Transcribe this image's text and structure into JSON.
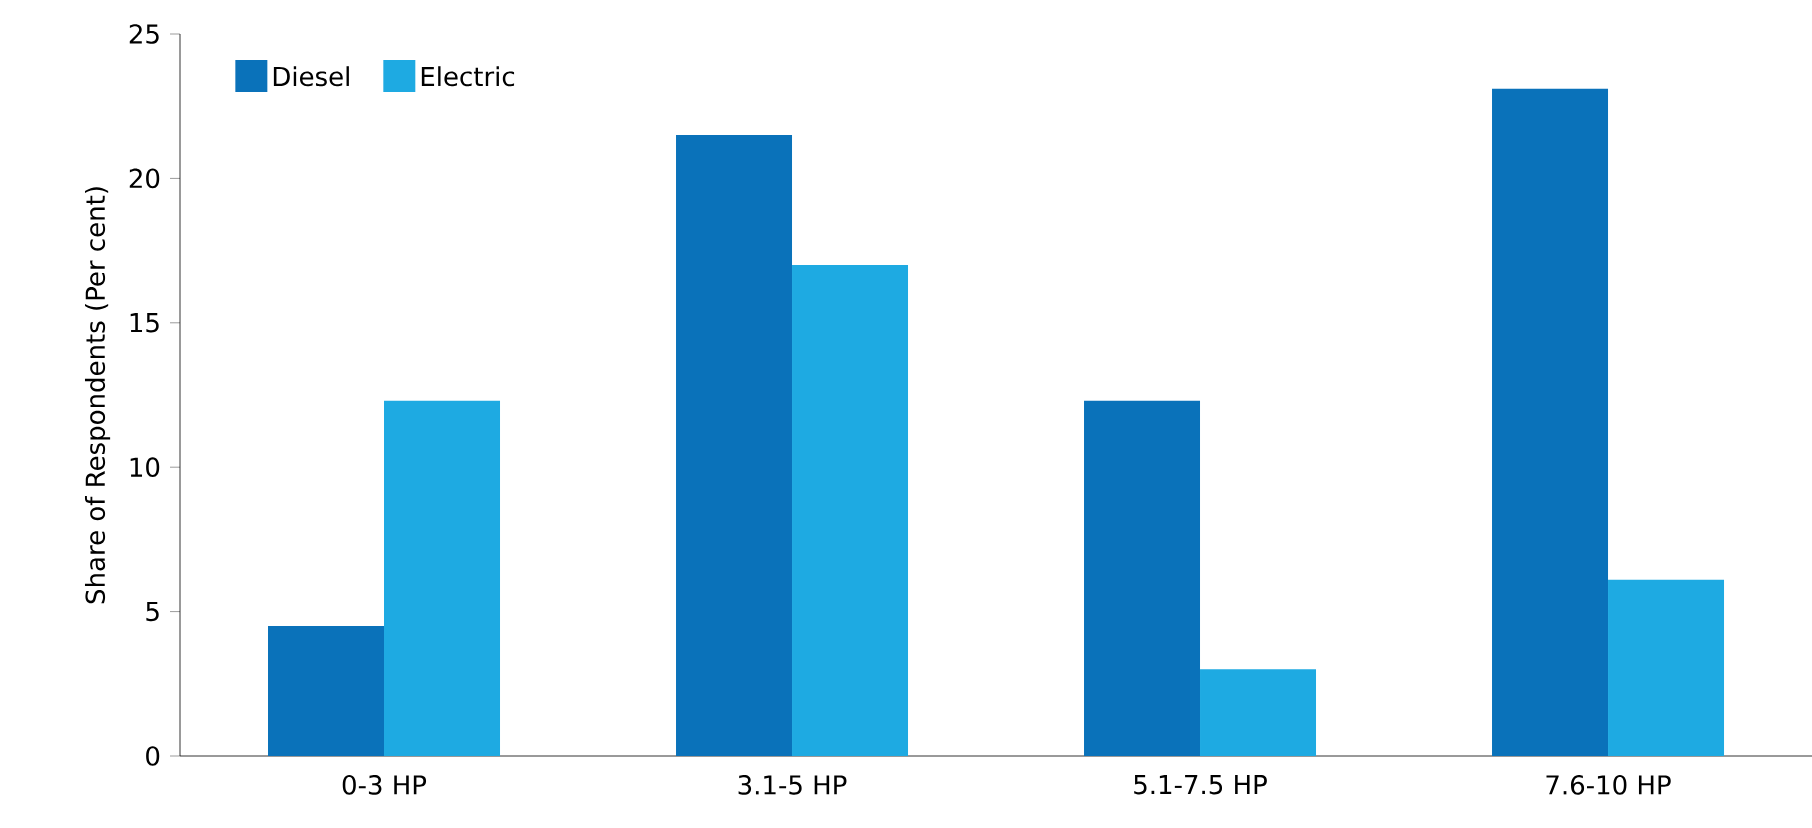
{
  "chart_data": {
    "type": "bar",
    "ylabel": "Share of Respondents (Per cent)",
    "categories": [
      "0-3 HP",
      "3.1-5 HP",
      "5.1-7.5 HP",
      "7.6-10 HP"
    ],
    "series": [
      {
        "name": "Diesel",
        "color": "#0a72ba",
        "values": [
          4.5,
          21.5,
          12.3,
          23.1
        ]
      },
      {
        "name": "Electric",
        "color": "#1eaae2",
        "values": [
          12.3,
          17.0,
          3.0,
          6.1
        ]
      }
    ],
    "ylim": [
      0,
      25
    ],
    "yticks": [
      0,
      5,
      10,
      15,
      20,
      25
    ],
    "grid": false,
    "legend": "top left"
  }
}
